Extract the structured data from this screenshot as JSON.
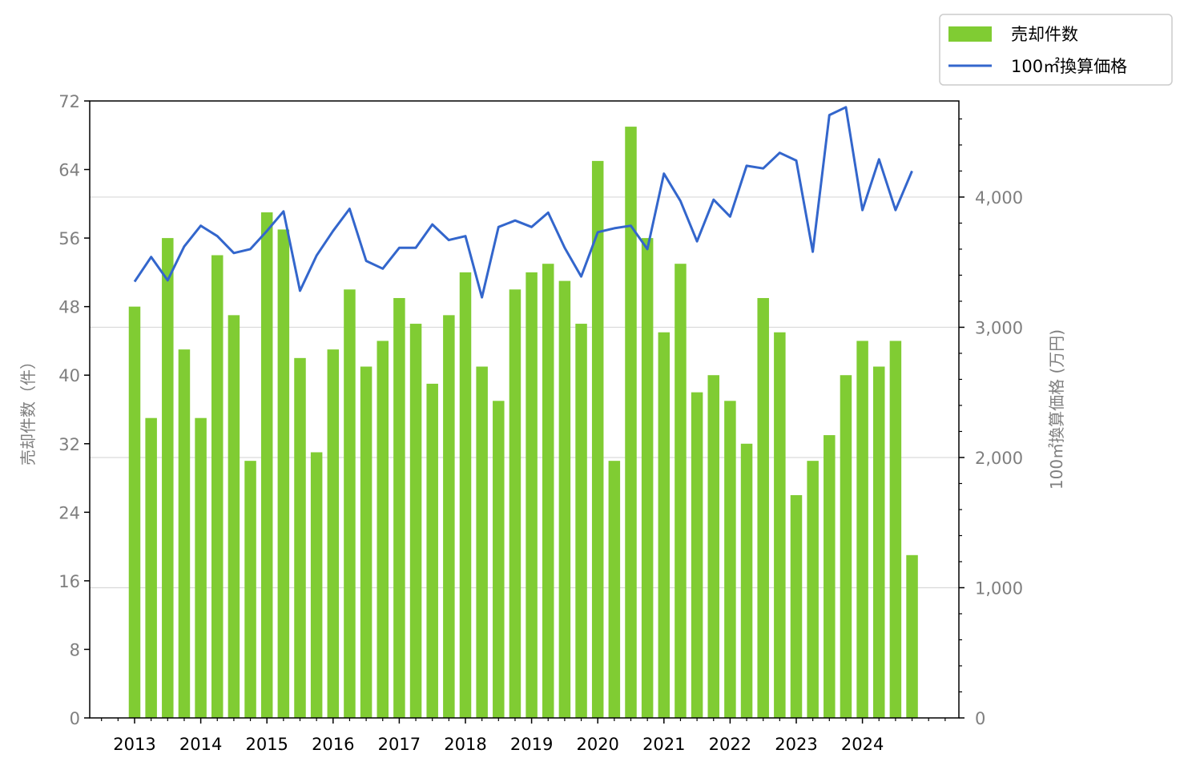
{
  "chart_data": {
    "type": "bar+line",
    "x_tick_labels": [
      "2013",
      "2014",
      "2015",
      "2016",
      "2017",
      "2018",
      "2019",
      "2020",
      "2021",
      "2022",
      "2023",
      "2024"
    ],
    "left_axis": {
      "label": "売却件数（件）",
      "ylim": [
        0,
        72
      ],
      "ticks": [
        "0",
        "8",
        "16",
        "24",
        "32",
        "40",
        "48",
        "56",
        "64",
        "72"
      ]
    },
    "right_axis": {
      "label": "100㎡換算価格 (万円)",
      "ylim": [
        0,
        4738
      ],
      "ticks": [
        "0",
        "1,000",
        "2,000",
        "3,000",
        "4,000"
      ]
    },
    "grid": "horizontal lines at right-axis major ticks",
    "legend": {
      "placement": "top-right",
      "entries": [
        "売却件数",
        "100㎡換算価格"
      ]
    },
    "series": [
      {
        "name": "売却件数",
        "kind": "bar",
        "color": "#80cc33",
        "values": [
          48,
          35,
          56,
          43,
          35,
          54,
          47,
          30,
          59,
          57,
          42,
          31,
          43,
          50,
          41,
          44,
          49,
          46,
          39,
          47,
          52,
          41,
          37,
          50,
          52,
          53,
          51,
          46,
          65,
          30,
          69,
          56,
          45,
          53,
          38,
          40,
          37,
          32,
          49,
          45,
          26,
          30,
          33,
          40,
          44,
          41,
          44,
          19
        ]
      },
      {
        "name": "100㎡換算価格",
        "kind": "line",
        "color": "#3366cc",
        "values": [
          3350,
          3540,
          3360,
          3620,
          3780,
          3700,
          3570,
          3600,
          3740,
          3890,
          3280,
          3550,
          3740,
          3910,
          3510,
          3450,
          3610,
          3610,
          3790,
          3670,
          3700,
          3230,
          3770,
          3820,
          3770,
          3880,
          3610,
          3390,
          3730,
          3760,
          3780,
          3600,
          4180,
          3970,
          3660,
          3980,
          3850,
          4240,
          4220,
          4340,
          4280,
          3580,
          4630,
          4690,
          3900,
          4290,
          3900,
          4200
        ]
      }
    ]
  }
}
